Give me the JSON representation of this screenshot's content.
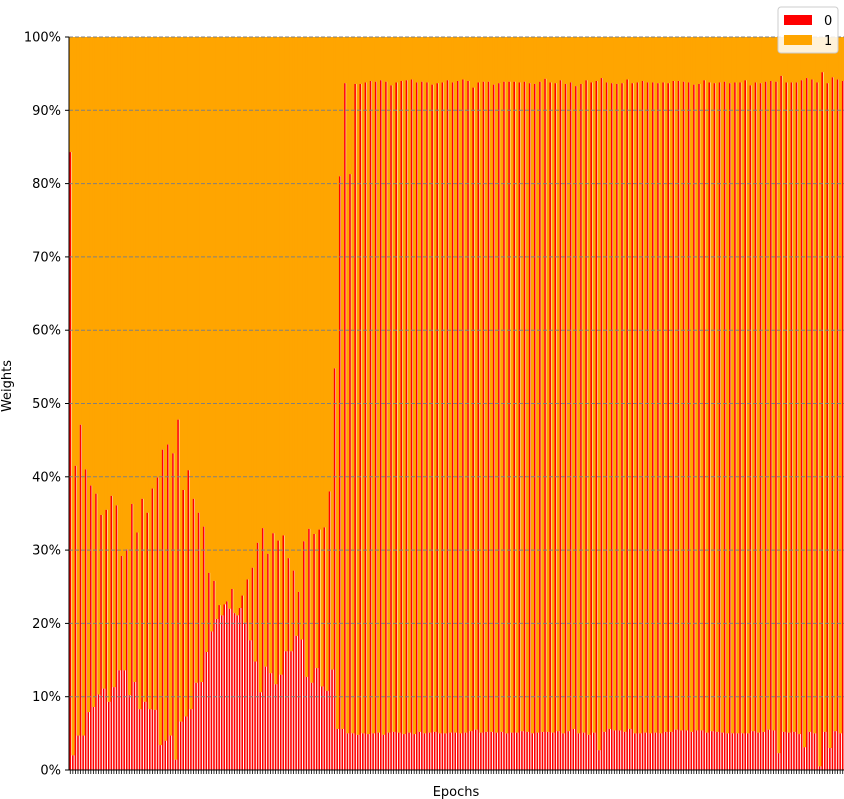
{
  "chart_data": {
    "type": "bar",
    "stacked": true,
    "normalized": true,
    "xlabel": "Epochs",
    "ylabel": "Weights",
    "ylim": [
      0,
      100
    ],
    "yticks": [
      "0%",
      "10%",
      "20%",
      "30%",
      "40%",
      "50%",
      "60%",
      "70%",
      "80%",
      "90%",
      "100%"
    ],
    "grid": "horizontal-dashed",
    "legend_position": "top-right",
    "legend": [
      {
        "label": "0",
        "color": "#ff0000"
      },
      {
        "label": "1",
        "color": "#ffa500"
      }
    ],
    "series": [
      {
        "name": "0",
        "color": "#ff0000",
        "values": [
          84.3,
          2.0,
          41.5,
          4.7,
          47.1,
          4.7,
          41.0,
          7.9,
          38.8,
          8.6,
          37.7,
          10.3,
          34.8,
          11.1,
          35.5,
          9.3,
          37.4,
          11.3,
          36.1,
          13.6,
          29.2,
          13.6,
          30.1,
          10.2,
          36.3,
          12.0,
          32.4,
          8.3,
          37.0,
          9.3,
          35.1,
          8.3,
          38.4,
          8.2,
          39.9,
          3.4,
          43.7,
          4.0,
          44.4,
          4.7,
          43.2,
          1.4,
          47.8,
          6.6,
          38.2,
          7.3,
          40.9,
          8.3,
          37.0,
          11.9,
          35.1,
          12.0,
          33.2,
          16.1,
          26.9,
          18.9,
          25.8,
          20.6,
          22.5,
          21.1,
          22.6,
          23.0,
          22.0,
          24.7,
          21.4,
          21.1,
          22.1,
          23.8,
          20.1,
          26.0,
          17.7,
          27.6,
          14.8,
          31.0,
          10.6,
          33.0,
          14.1,
          29.5,
          13.2,
          32.3,
          11.7,
          31.3,
          13.0,
          32.0,
          16.2,
          28.9,
          16.2,
          27.2,
          18.3,
          24.3,
          17.8,
          31.2,
          12.7,
          32.9,
          11.9,
          32.2,
          13.9,
          32.8,
          11.4,
          33.1,
          10.8,
          38.0,
          13.7,
          54.8,
          5.6,
          81.0,
          5.6,
          93.7,
          5.0,
          81.3,
          5.0,
          93.6,
          4.8,
          93.6,
          5.0,
          93.8,
          4.9,
          94.0,
          5.0,
          93.9,
          5.1,
          94.1,
          4.8,
          93.9,
          5.1,
          93.4,
          5.2,
          93.8,
          5.1,
          94.0,
          4.9,
          94.1,
          5.1,
          94.2,
          4.9,
          93.8,
          5.2,
          93.9,
          5.0,
          93.8,
          5.1,
          93.5,
          5.2,
          93.7,
          5.0,
          93.8,
          5.0,
          94.1,
          5.1,
          93.8,
          5.1,
          94.0,
          5.0,
          94.2,
          5.1,
          94.0,
          5.3,
          93.1,
          5.5,
          93.8,
          5.1,
          93.9,
          5.2,
          93.9,
          5.2,
          93.5,
          5.1,
          93.7,
          5.2,
          93.9,
          5.0,
          93.9,
          5.1,
          93.9,
          5.1,
          93.8,
          5.3,
          93.9,
          5.2,
          93.7,
          5.0,
          93.6,
          5.1,
          93.9,
          5.2,
          94.3,
          5.2,
          93.8,
          5.1,
          93.7,
          5.3,
          94.1,
          5.0,
          93.6,
          5.3,
          93.8,
          5.6,
          93.3,
          5.0,
          93.6,
          5.1,
          94.1,
          4.8,
          93.8,
          5.1,
          94.0,
          2.7,
          94.4,
          5.2,
          93.8,
          5.6,
          93.7,
          5.4,
          93.6,
          5.4,
          93.7,
          5.2,
          94.2,
          5.6,
          93.7,
          5.0,
          93.8,
          5.0,
          94.0,
          5.1,
          93.8,
          5.0,
          93.8,
          5.1,
          93.7,
          5.0,
          93.8,
          5.2,
          93.7,
          5.2,
          94.0,
          5.5,
          94.0,
          5.4,
          93.9,
          5.4,
          93.8,
          5.2,
          93.5,
          5.4,
          93.6,
          5.4,
          94.1,
          5.1,
          93.8,
          5.3,
          93.7,
          5.2,
          93.8,
          5.1,
          93.9,
          5.0,
          93.7,
          5.0,
          93.8,
          5.0,
          93.8,
          5.0,
          94.1,
          5.0,
          93.4,
          5.3,
          93.8,
          5.1,
          93.7,
          5.2,
          93.9,
          5.5,
          94.0,
          5.4,
          93.9,
          2.3,
          94.7,
          5.2,
          93.8,
          5.1,
          93.8,
          5.2,
          93.8,
          4.9,
          94.1,
          3.1,
          94.4,
          5.2,
          94.2,
          5.0,
          93.8,
          0.5,
          95.2,
          5.2,
          93.7,
          3.0,
          94.5,
          5.3,
          94.2,
          5.0,
          94.0
        ]
      },
      {
        "name": "1",
        "color": "#ffa500",
        "values": []
      }
    ]
  }
}
